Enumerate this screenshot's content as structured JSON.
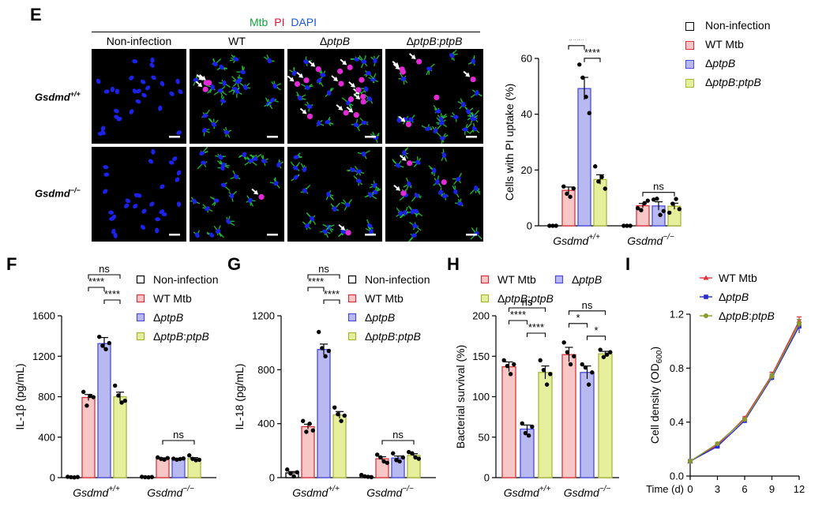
{
  "panel_letters": {
    "e": "E",
    "f": "F",
    "g": "G",
    "h": "H",
    "i": "I"
  },
  "micrograph": {
    "stain_labels": [
      {
        "text": "Mtb",
        "color": "#12a33a"
      },
      {
        "text": "PI",
        "color": "#d4162b"
      },
      {
        "text": "DAPI",
        "color": "#1b55d9"
      }
    ],
    "columns": [
      "Non-infection",
      "WT",
      "ΔptpB",
      "ΔptpB:ptpB"
    ],
    "rows": [
      {
        "base": "Gsdmd",
        "sup": "+/+"
      },
      {
        "base": "Gsdmd",
        "sup": "−/−"
      }
    ]
  },
  "colors": {
    "non_infection": "#ffffff",
    "wt": "#f7c7c7",
    "wt_edge": "#e0313b",
    "dptpb": "#b9b9f2",
    "dptpb_edge": "#4a4ae0",
    "comp": "#e6ef9b",
    "comp_edge": "#a9b63a",
    "nucleus": "#1c22e8",
    "pi": "#e22ad6",
    "mtb": "#22c43a"
  },
  "legend_4": [
    "Non-infection",
    "WT Mtb",
    "ΔptpB",
    "ΔptpB:ptpB"
  ],
  "legend_3": [
    "WT Mtb",
    "ΔptpB",
    "ΔptpB:ptpB"
  ],
  "genotype_labels": [
    {
      "base": "Gsdmd",
      "sup": "+/+"
    },
    {
      "base": "Gsdmd",
      "sup": "−/−"
    }
  ],
  "chart_data": [
    {
      "panel": "E",
      "type": "bar",
      "ylabel": "Cells with PI uptake (%)",
      "ylim": [
        0,
        60
      ],
      "yticks": [
        0,
        20,
        40,
        60
      ],
      "groups": [
        "Gsdmd+/+",
        "Gsdmd−/−"
      ],
      "series": [
        {
          "name": "Non-infection",
          "values": [
            0,
            0
          ],
          "points": [
            [
              0,
              0,
              0
            ],
            [
              0,
              0,
              0
            ]
          ],
          "err": [
            0,
            0
          ]
        },
        {
          "name": "WT Mtb",
          "values": [
            12.7,
            7.2
          ],
          "points": [
            [
              14.1,
              11.5,
              10.4,
              13.4
            ],
            [
              6.3,
              5.6,
              8.1,
              9.0
            ]
          ],
          "err": [
            1.2,
            0.8
          ]
        },
        {
          "name": "ΔptpB",
          "values": [
            49.2,
            7.1
          ],
          "points": [
            [
              57.8,
              53.1,
              46.2,
              40.4
            ],
            [
              9.4,
              9.7,
              3.9,
              5.3
            ]
          ],
          "err": [
            4.0,
            1.5
          ]
        },
        {
          "name": "ΔptpB:ptpB",
          "values": [
            16.6,
            7.0
          ],
          "points": [
            [
              21.3,
              15.9,
              17.5,
              13.3
            ],
            [
              4.7,
              7.9,
              9.6,
              6.0
            ]
          ],
          "err": [
            1.7,
            1.1
          ]
        }
      ],
      "significance": [
        {
          "text": "ns",
          "from": 1,
          "to": 3,
          "group": 0,
          "level": 2
        },
        {
          "text": "****",
          "from": 1,
          "to": 2,
          "group": 0,
          "level": 1
        },
        {
          "text": "****",
          "from": 2,
          "to": 3,
          "group": 0,
          "level": 0
        },
        {
          "text": "ns",
          "from": 1,
          "to": 3,
          "group": 1,
          "level": 0
        }
      ]
    },
    {
      "panel": "F",
      "type": "bar",
      "ylabel": "IL-1β (pg/mL)",
      "ylim": [
        0,
        1600
      ],
      "yticks": [
        0,
        400,
        800,
        1200,
        1600
      ],
      "groups": [
        "Gsdmd+/+",
        "Gsdmd−/−"
      ],
      "series": [
        {
          "name": "Non-infection",
          "values": [
            5,
            5
          ],
          "points": [
            [
              8,
              4,
              2,
              6
            ],
            [
              8,
              4,
              3,
              6
            ]
          ],
          "err": [
            2,
            2
          ]
        },
        {
          "name": "WT Mtb",
          "values": [
            792,
            190
          ],
          "points": [
            [
              848,
              712,
              808,
              796
            ],
            [
              200,
              186,
              178,
              194
            ]
          ],
          "err": [
            30,
            6
          ]
        },
        {
          "name": "ΔptpB",
          "values": [
            1325,
            185
          ],
          "points": [
            [
              1392,
              1304,
              1270,
              1330
            ],
            [
              188,
              178,
              184,
              190
            ]
          ],
          "err": [
            60,
            6
          ]
        },
        {
          "name": "ΔptpB:ptpB",
          "values": [
            800,
            188
          ],
          "points": [
            [
              910,
              812,
              742,
              760
            ],
            [
              220,
              186,
              172,
              176
            ]
          ],
          "err": [
            45,
            10
          ]
        }
      ],
      "significance": [
        {
          "text": "ns",
          "from": 1,
          "to": 3,
          "group": 0,
          "level": 2
        },
        {
          "text": "****",
          "from": 1,
          "to": 2,
          "group": 0,
          "level": 1
        },
        {
          "text": "****",
          "from": 2,
          "to": 3,
          "group": 0,
          "level": 0
        },
        {
          "text": "ns",
          "from": 1,
          "to": 3,
          "group": 1,
          "level": 0
        }
      ]
    },
    {
      "panel": "G",
      "type": "bar",
      "ylabel": "IL-18 (pg/mL)",
      "ylim": [
        0,
        1200
      ],
      "yticks": [
        0,
        400,
        800,
        1200
      ],
      "groups": [
        "Gsdmd+/+",
        "Gsdmd−/−"
      ],
      "series": [
        {
          "name": "Non-infection",
          "values": [
            35,
            10
          ],
          "points": [
            [
              60,
              30,
              10,
              40
            ],
            [
              20,
              10,
              6,
              4
            ]
          ],
          "err": [
            10,
            3
          ]
        },
        {
          "name": "WT Mtb",
          "values": [
            378,
            140
          ],
          "points": [
            [
              420,
              340,
              400,
              350
            ],
            [
              170,
              150,
              120,
              110
            ]
          ],
          "err": [
            18,
            15
          ]
        },
        {
          "name": "ΔptpB",
          "values": [
            950,
            145
          ],
          "points": [
            [
              1080,
              960,
              900,
              940
            ],
            [
              180,
              130,
              120,
              150
            ]
          ],
          "err": [
            40,
            15
          ]
        },
        {
          "name": "ΔptpB:ptpB",
          "values": [
            465,
            165
          ],
          "points": [
            [
              520,
              470,
              420,
              460
            ],
            [
              190,
              180,
              150,
              140
            ]
          ],
          "err": [
            25,
            12
          ]
        }
      ],
      "significance": [
        {
          "text": "ns",
          "from": 1,
          "to": 3,
          "group": 0,
          "level": 2
        },
        {
          "text": "****",
          "from": 1,
          "to": 2,
          "group": 0,
          "level": 1
        },
        {
          "text": "****",
          "from": 2,
          "to": 3,
          "group": 0,
          "level": 0
        },
        {
          "text": "ns",
          "from": 1,
          "to": 3,
          "group": 1,
          "level": 0
        }
      ]
    },
    {
      "panel": "H",
      "type": "bar",
      "ylabel": "Bacterial survival (%)",
      "ylim": [
        0,
        200
      ],
      "yticks": [
        0,
        50,
        100,
        150,
        200
      ],
      "groups": [
        "Gsdmd+/+",
        "Gsdmd−/−"
      ],
      "series": [
        {
          "name": "WT Mtb",
          "values": [
            137,
            152
          ],
          "points": [
            [
              145,
              138,
              128,
              140
            ],
            [
              167,
              155,
              140,
              150
            ]
          ],
          "err": [
            6,
            9
          ]
        },
        {
          "name": "ΔptpB",
          "values": [
            60,
            130
          ],
          "points": [
            [
              67,
              55,
              52,
              63
            ],
            [
              140,
              136,
              115,
              130
            ]
          ],
          "err": [
            5,
            8
          ]
        },
        {
          "name": "ΔptpB:ptpB",
          "values": [
            130,
            153
          ],
          "points": [
            [
              145,
              133,
              115,
              128
            ],
            [
              158,
              149,
              152,
              155
            ]
          ],
          "err": [
            8,
            3
          ]
        }
      ],
      "significance": [
        {
          "text": "ns",
          "from": 0,
          "to": 2,
          "group": 0,
          "level": 2
        },
        {
          "text": "****",
          "from": 0,
          "to": 1,
          "group": 0,
          "level": 1
        },
        {
          "text": "****",
          "from": 1,
          "to": 2,
          "group": 0,
          "level": 0
        },
        {
          "text": "ns",
          "from": 0,
          "to": 2,
          "group": 1,
          "level": 2
        },
        {
          "text": "*",
          "from": 0,
          "to": 1,
          "group": 1,
          "level": 1
        },
        {
          "text": "*",
          "from": 1,
          "to": 2,
          "group": 1,
          "level": 0
        }
      ]
    },
    {
      "panel": "I",
      "type": "line",
      "xlabel": "Time (d)",
      "ylabel": "Cell density (OD600)",
      "xlim": [
        0,
        12
      ],
      "xticks": [
        0,
        3,
        6,
        9,
        12
      ],
      "ylim": [
        0,
        1.2
      ],
      "yticks": [
        "0.0",
        "0.4",
        "0.8",
        "1.2"
      ],
      "x": [
        0,
        3,
        6,
        9,
        12
      ],
      "series": [
        {
          "name": "WT Mtb",
          "color": "#e0313b",
          "marker": "triangle",
          "values": [
            0.11,
            0.23,
            0.43,
            0.75,
            1.15
          ],
          "err": [
            0.005,
            0.01,
            0.01,
            0.02,
            0.03
          ]
        },
        {
          "name": "ΔptpB",
          "color": "#2a2ad6",
          "marker": "square",
          "values": [
            0.11,
            0.22,
            0.41,
            0.73,
            1.11
          ],
          "err": [
            0.005,
            0.01,
            0.01,
            0.02,
            0.05
          ]
        },
        {
          "name": "ΔptpB:ptpB",
          "color": "#8b9a2c",
          "marker": "circle",
          "values": [
            0.11,
            0.24,
            0.42,
            0.74,
            1.13
          ],
          "err": [
            0.005,
            0.01,
            0.01,
            0.02,
            0.03
          ]
        }
      ]
    }
  ]
}
